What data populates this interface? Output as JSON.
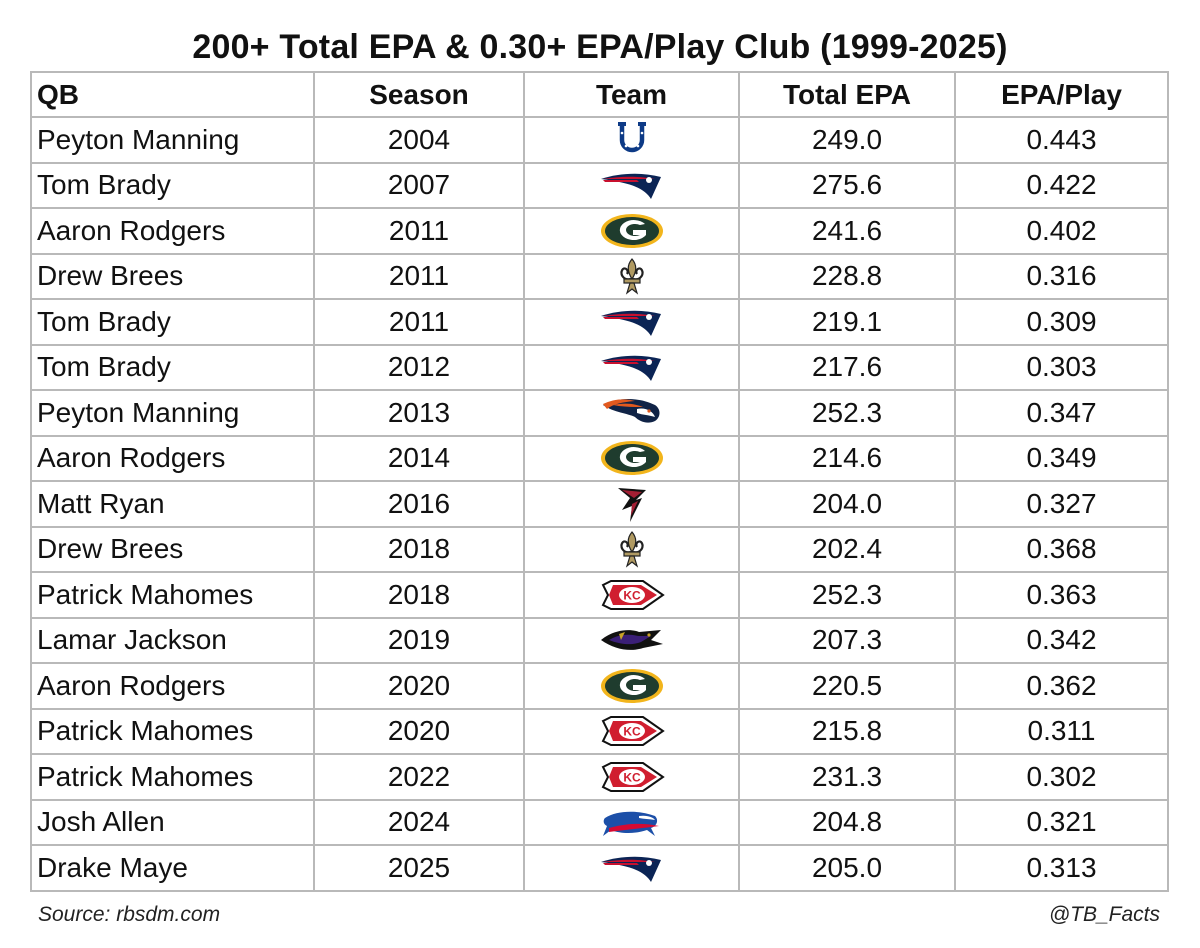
{
  "title": "200+ Total EPA & 0.30+ EPA/Play Club (1999-2025)",
  "table": {
    "headers": {
      "qb": "QB",
      "season": "Season",
      "team": "Team",
      "total_epa": "Total EPA",
      "epa_play": "EPA/Play"
    },
    "rows": [
      {
        "qb": "Peyton Manning",
        "season": "2004",
        "team_icon": "colts-horseshoe-icon",
        "total_epa": "249.0",
        "epa_play": "0.443"
      },
      {
        "qb": "Tom Brady",
        "season": "2007",
        "team_icon": "patriots-logo-icon",
        "total_epa": "275.6",
        "epa_play": "0.422"
      },
      {
        "qb": "Aaron Rodgers",
        "season": "2011",
        "team_icon": "packers-g-icon",
        "total_epa": "241.6",
        "epa_play": "0.402"
      },
      {
        "qb": "Drew Brees",
        "season": "2011",
        "team_icon": "saints-fleur-de-lis-icon",
        "total_epa": "228.8",
        "epa_play": "0.316"
      },
      {
        "qb": "Tom Brady",
        "season": "2011",
        "team_icon": "patriots-logo-icon",
        "total_epa": "219.1",
        "epa_play": "0.309"
      },
      {
        "qb": "Tom Brady",
        "season": "2012",
        "team_icon": "patriots-logo-icon",
        "total_epa": "217.6",
        "epa_play": "0.303"
      },
      {
        "qb": "Peyton Manning",
        "season": "2013",
        "team_icon": "broncos-horse-icon",
        "total_epa": "252.3",
        "epa_play": "0.347"
      },
      {
        "qb": "Aaron Rodgers",
        "season": "2014",
        "team_icon": "packers-g-icon",
        "total_epa": "214.6",
        "epa_play": "0.349"
      },
      {
        "qb": "Matt Ryan",
        "season": "2016",
        "team_icon": "falcons-logo-icon",
        "total_epa": "204.0",
        "epa_play": "0.327"
      },
      {
        "qb": "Drew Brees",
        "season": "2018",
        "team_icon": "saints-fleur-de-lis-icon",
        "total_epa": "202.4",
        "epa_play": "0.368"
      },
      {
        "qb": "Patrick Mahomes",
        "season": "2018",
        "team_icon": "chiefs-arrowhead-icon",
        "total_epa": "252.3",
        "epa_play": "0.363"
      },
      {
        "qb": "Lamar Jackson",
        "season": "2019",
        "team_icon": "ravens-bird-icon",
        "total_epa": "207.3",
        "epa_play": "0.342"
      },
      {
        "qb": "Aaron Rodgers",
        "season": "2020",
        "team_icon": "packers-g-icon",
        "total_epa": "220.5",
        "epa_play": "0.362"
      },
      {
        "qb": "Patrick Mahomes",
        "season": "2020",
        "team_icon": "chiefs-arrowhead-icon",
        "total_epa": "215.8",
        "epa_play": "0.311"
      },
      {
        "qb": "Patrick Mahomes",
        "season": "2022",
        "team_icon": "chiefs-arrowhead-icon",
        "total_epa": "231.3",
        "epa_play": "0.302"
      },
      {
        "qb": "Josh Allen",
        "season": "2024",
        "team_icon": "bills-buffalo-icon",
        "total_epa": "204.8",
        "epa_play": "0.321"
      },
      {
        "qb": "Drake Maye",
        "season": "2025",
        "team_icon": "patriots-logo-icon",
        "total_epa": "205.0",
        "epa_play": "0.313"
      }
    ]
  },
  "footer": {
    "source": "Source: rbsdm.com",
    "handle": "@TB_Facts"
  },
  "colors": {
    "colts_blue": "#0d3a86",
    "patriots_navy": "#0b2455",
    "patriots_red": "#c8102e",
    "packers_green": "#1f3c2e",
    "packers_gold": "#f2b51c",
    "saints_gold": "#b09a62",
    "broncos_orange": "#e2591f",
    "broncos_navy": "#102346",
    "falcons_red": "#a31f34",
    "chiefs_red": "#d01e2f",
    "ravens_purple": "#3b1f77",
    "bills_blue": "#1c4fa8",
    "bills_red": "#d50a32",
    "grid_line": "#b9b9b9"
  }
}
